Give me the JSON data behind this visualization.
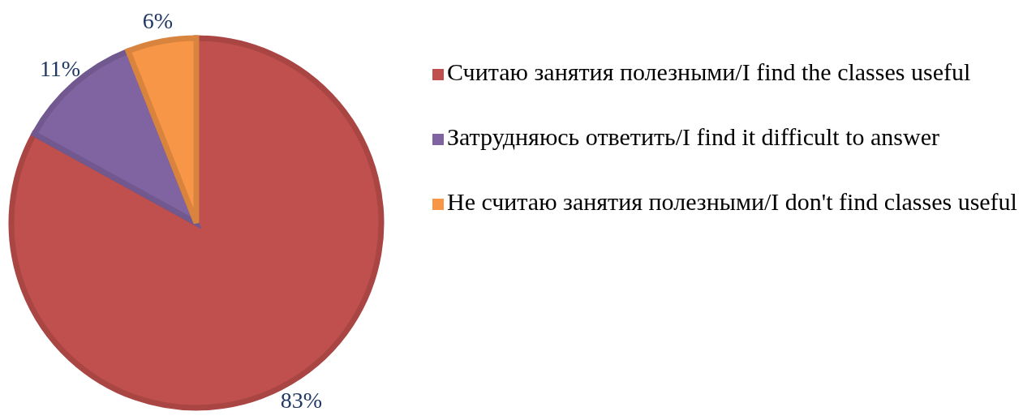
{
  "chart_data": {
    "type": "pie",
    "categories": [
      "Считаю занятия полезными/I find the classes useful",
      "Затрудняюсь ответить/I find it difficult to answer",
      "Не считаю занятия полезными/I don't find classes useful"
    ],
    "values": [
      83,
      11,
      6
    ],
    "colors": [
      "#c0504d",
      "#8064a2",
      "#f79646"
    ],
    "value_labels": [
      "83%",
      "11%",
      "6%"
    ],
    "legend": "right"
  }
}
